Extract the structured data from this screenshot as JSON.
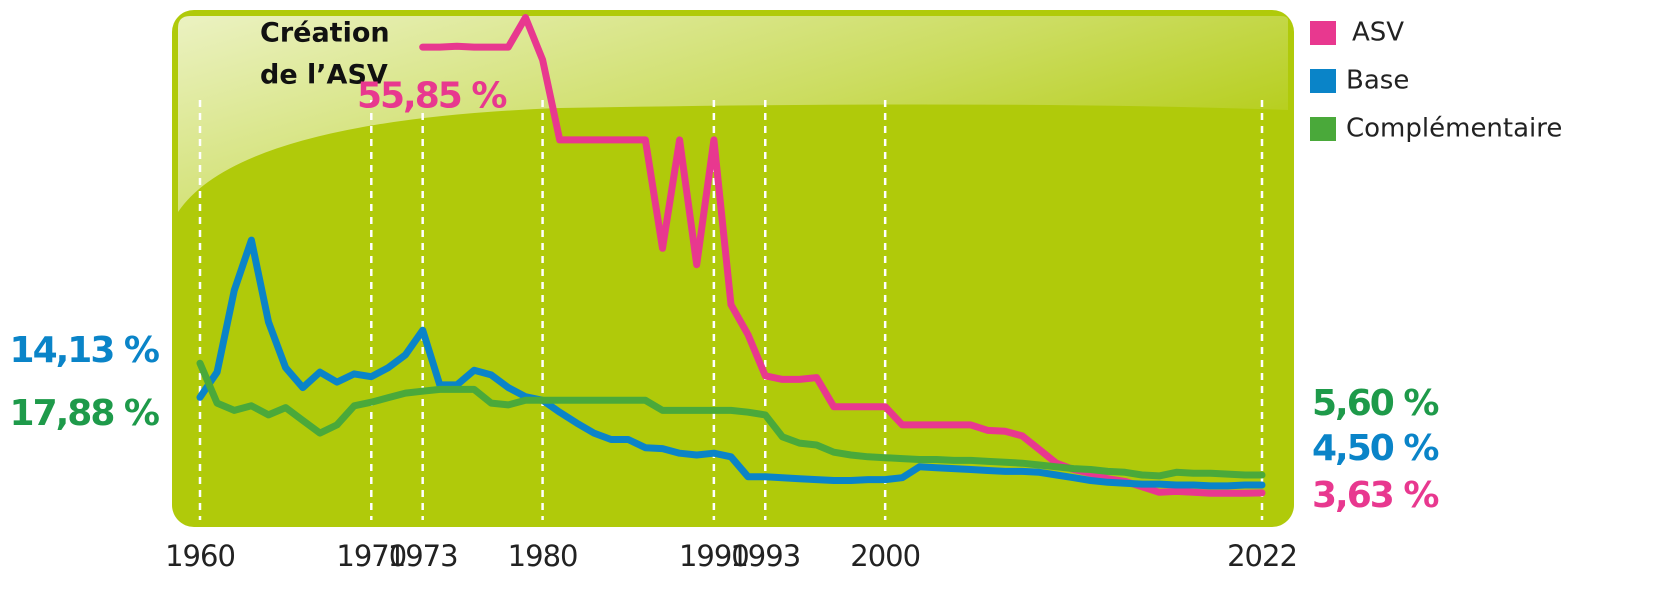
{
  "chart_data": {
    "type": "line",
    "annotations": [
      "Création",
      "de l’ASV"
    ],
    "x": [
      1960,
      1961,
      1962,
      1963,
      1964,
      1965,
      1966,
      1967,
      1968,
      1969,
      1970,
      1971,
      1972,
      1973,
      1974,
      1975,
      1976,
      1977,
      1978,
      1979,
      1980,
      1981,
      1982,
      1983,
      1984,
      1985,
      1986,
      1987,
      1988,
      1989,
      1990,
      1991,
      1992,
      1993,
      1994,
      1995,
      1996,
      1997,
      1998,
      1999,
      2000,
      2001,
      2002,
      2003,
      2004,
      2005,
      2006,
      2007,
      2008,
      2009,
      2010,
      2011,
      2012,
      2013,
      2014,
      2015,
      2016,
      2017,
      2018,
      2019,
      2020,
      2021,
      2022
    ],
    "xlim": [
      1960,
      2022
    ],
    "xticks": [
      1960,
      1970,
      1973,
      1980,
      1990,
      1993,
      2000,
      2022
    ],
    "ylim": [
      0,
      57
    ],
    "series": [
      {
        "name": "ASV",
        "color": "#e8388f",
        "values": [
          null,
          null,
          null,
          null,
          null,
          null,
          null,
          null,
          null,
          null,
          null,
          null,
          null,
          52.6,
          52.6,
          52.7,
          52.6,
          52.6,
          52.6,
          55.85,
          51.2,
          42.4,
          42.4,
          42.4,
          42.4,
          42.4,
          42.4,
          30.5,
          42.4,
          28.7,
          42.4,
          24.3,
          21,
          16.5,
          16.1,
          16.1,
          16.3,
          13.1,
          13.1,
          13.1,
          13.1,
          11.1,
          11.1,
          11.1,
          11.1,
          11.1,
          10.5,
          10.4,
          9.9,
          8.4,
          6.9,
          6.2,
          5.8,
          5.2,
          4.9,
          4.3,
          3.7,
          3.8,
          3.7,
          3.6,
          3.6,
          3.6,
          3.63
        ],
        "value_labels": [
          null,
          null,
          null,
          null,
          null,
          null,
          null,
          null,
          null,
          null,
          null,
          null,
          null,
          null,
          null,
          null,
          null,
          null,
          null,
          "55,85 %",
          null,
          null,
          null,
          null,
          null,
          null,
          null,
          null,
          null,
          null,
          null,
          null,
          null,
          null,
          null,
          null,
          null,
          null,
          null,
          null,
          null,
          null,
          null,
          null,
          null,
          null,
          null,
          null,
          null,
          null,
          null,
          null,
          null,
          null,
          null,
          null,
          null,
          null,
          null,
          null,
          null,
          null,
          "3,63 %"
        ]
      },
      {
        "name": "Base",
        "color": "#0a84c8",
        "values": [
          14.13,
          16.9,
          25.9,
          31.4,
          22.4,
          17.4,
          15.2,
          16.9,
          15.8,
          16.7,
          16.4,
          17.4,
          18.8,
          21.5,
          15.5,
          15.5,
          17.1,
          16.6,
          15.2,
          14.2,
          13.8,
          12.5,
          11.3,
          10.2,
          9.5,
          9.5,
          8.6,
          8.5,
          8.0,
          7.8,
          8.0,
          7.6,
          5.4,
          5.4,
          5.3,
          5.2,
          5.1,
          5.0,
          5.0,
          5.1,
          5.1,
          5.3,
          6.5,
          6.4,
          6.3,
          6.2,
          6.1,
          6.0,
          6.0,
          5.9,
          5.6,
          5.3,
          5.0,
          4.8,
          4.7,
          4.6,
          4.6,
          4.5,
          4.5,
          4.4,
          4.4,
          4.5,
          4.5
        ],
        "value_labels": [
          "14,13 %",
          null,
          null,
          null,
          null,
          null,
          null,
          null,
          null,
          null,
          null,
          null,
          null,
          null,
          null,
          null,
          null,
          null,
          null,
          null,
          null,
          null,
          null,
          null,
          null,
          null,
          null,
          null,
          null,
          null,
          null,
          null,
          null,
          null,
          null,
          null,
          null,
          null,
          null,
          null,
          null,
          null,
          null,
          null,
          null,
          null,
          null,
          null,
          null,
          null,
          null,
          null,
          null,
          null,
          null,
          null,
          null,
          null,
          null,
          null,
          null,
          null,
          "4,50 %"
        ]
      },
      {
        "name": "Complémentaire",
        "color": "#4aa93a",
        "values": [
          17.88,
          13.5,
          12.7,
          13.2,
          12.2,
          13.0,
          11.6,
          10.2,
          11.1,
          13.2,
          13.6,
          14.1,
          14.6,
          14.8,
          15.0,
          15.0,
          15.0,
          13.5,
          13.3,
          13.8,
          13.8,
          13.8,
          13.8,
          13.8,
          13.8,
          13.8,
          13.8,
          12.7,
          12.7,
          12.7,
          12.7,
          12.7,
          12.5,
          12.2,
          9.8,
          9.1,
          8.9,
          8.1,
          7.8,
          7.6,
          7.5,
          7.4,
          7.3,
          7.3,
          7.2,
          7.2,
          7.1,
          7.0,
          6.9,
          6.7,
          6.5,
          6.3,
          6.2,
          6.0,
          5.9,
          5.6,
          5.5,
          5.9,
          5.8,
          5.8,
          5.7,
          5.6,
          5.6
        ],
        "value_labels": [
          "17,88 %",
          null,
          null,
          null,
          null,
          null,
          null,
          null,
          null,
          null,
          null,
          null,
          null,
          null,
          null,
          null,
          null,
          null,
          null,
          null,
          null,
          null,
          null,
          null,
          null,
          null,
          null,
          null,
          null,
          null,
          null,
          null,
          null,
          null,
          null,
          null,
          null,
          null,
          null,
          null,
          null,
          null,
          null,
          null,
          null,
          null,
          null,
          null,
          null,
          null,
          null,
          null,
          null,
          null,
          null,
          null,
          null,
          null,
          null,
          null,
          null,
          null,
          "5,60 %"
        ]
      }
    ]
  }
}
